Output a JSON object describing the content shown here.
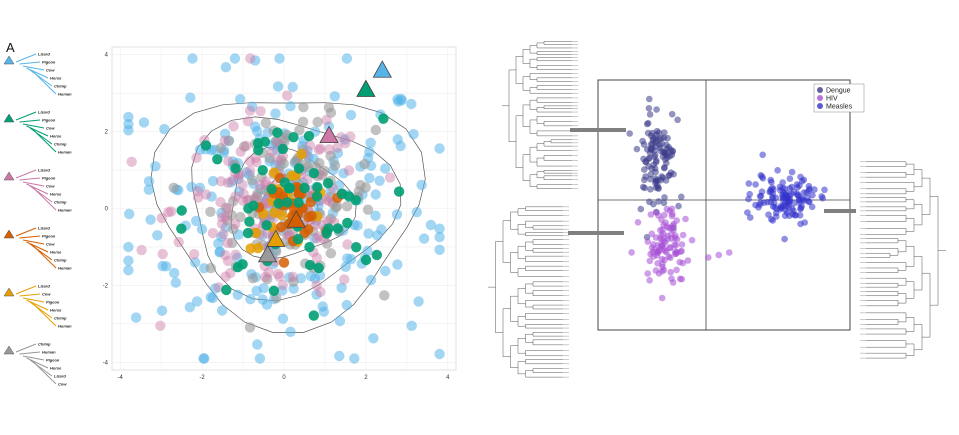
{
  "panel_label": "A",
  "colors": {
    "blue": "#56B4E9",
    "green": "#009E73",
    "pink": "#CC79A7",
    "vermillion": "#D55E00",
    "orange": "#E69F00",
    "grey": "#999999",
    "dengue": "#3B3B8A",
    "hiv": "#A64FD6",
    "measles": "#3333CC"
  },
  "trees": [
    {
      "color": "#56B4E9",
      "taxa": [
        "Lizard",
        "Pigeon",
        "Cow",
        "Horse",
        "Chimp",
        "Human"
      ]
    },
    {
      "color": "#009E73",
      "taxa": [
        "Lizard",
        "Pigeon",
        "Cow",
        "Horse",
        "Chimp",
        "Human"
      ]
    },
    {
      "color": "#CC79A7",
      "taxa": [
        "Lizard",
        "Pigeon",
        "Cow",
        "Horse",
        "Chimp",
        "Human"
      ]
    },
    {
      "color": "#D55E00",
      "taxa": [
        "Lizard",
        "Pigeon",
        "Cow",
        "Horse",
        "Chimp",
        "Human"
      ]
    },
    {
      "color": "#E69F00",
      "taxa": [
        "Lizard",
        "Cow",
        "Pigeon",
        "Horse",
        "Chimp",
        "Human"
      ]
    },
    {
      "color": "#999999",
      "taxa": [
        "Chimp",
        "Human",
        "Pigeon",
        "Horse",
        "Lizard",
        "Cow"
      ]
    }
  ],
  "chart_data": [
    {
      "type": "scatter",
      "title": "",
      "xlabel": "",
      "ylabel": "",
      "xlim": [
        -4.2,
        4.2
      ],
      "ylim": [
        -4.2,
        4.2
      ],
      "xticks": [
        "-4",
        "-2",
        "0",
        "2",
        "4"
      ],
      "yticks": [
        "4",
        "2",
        "0",
        "-2",
        "-4"
      ],
      "grid": true,
      "series": [
        {
          "color": "#56B4E9",
          "center": [
            0.0,
            0.0
          ],
          "spread": 1.9,
          "count": 230,
          "opacity": 0.55
        },
        {
          "color": "#999999",
          "center": [
            0.2,
            0.3
          ],
          "spread": 1.0,
          "count": 120,
          "opacity": 0.6
        },
        {
          "color": "#CC79A7",
          "center": [
            -0.3,
            0.0
          ],
          "spread": 1.2,
          "count": 140,
          "opacity": 0.45
        },
        {
          "color": "#E69F00",
          "center": [
            0.1,
            0.1
          ],
          "spread": 0.55,
          "count": 22,
          "opacity": 0.85
        },
        {
          "color": "#D55E00",
          "center": [
            0.2,
            0.0
          ],
          "spread": 0.35,
          "count": 32,
          "opacity": 0.85
        },
        {
          "color": "#009E73",
          "center": [
            0.0,
            -0.1
          ],
          "spread": 1.2,
          "count": 55,
          "opacity": 0.9
        }
      ],
      "triangles": [
        {
          "color": "#56B4E9",
          "x": 2.4,
          "y": 3.6
        },
        {
          "color": "#009E73",
          "x": 2.0,
          "y": 3.1
        },
        {
          "color": "#CC79A7",
          "x": 1.1,
          "y": 1.9
        },
        {
          "color": "#E69F00",
          "x": -0.2,
          "y": -0.8
        },
        {
          "color": "#D55E00",
          "x": 0.3,
          "y": -0.3
        },
        {
          "color": "#999999",
          "x": -0.4,
          "y": -1.2
        }
      ]
    },
    {
      "type": "scatter",
      "title": "",
      "xlabel": "",
      "ylabel": "",
      "legend": "top-right",
      "grid": false,
      "series": [
        {
          "name": "Dengue",
          "color": "#3B3B8A",
          "center": [
            -0.62,
            0.35
          ],
          "spread": [
            0.1,
            0.18
          ],
          "count": 110
        },
        {
          "name": "HIV",
          "color": "#A64FD6",
          "center": [
            -0.55,
            -0.32
          ],
          "spread": [
            0.12,
            0.15
          ],
          "count": 95
        },
        {
          "name": "Measles",
          "color": "#3333CC",
          "center": [
            0.6,
            0.05
          ],
          "spread": [
            0.15,
            0.1
          ],
          "count": 120
        }
      ],
      "xlim": [
        -1.2,
        1.2
      ],
      "ylim": [
        -1.0,
        1.0
      ]
    }
  ]
}
